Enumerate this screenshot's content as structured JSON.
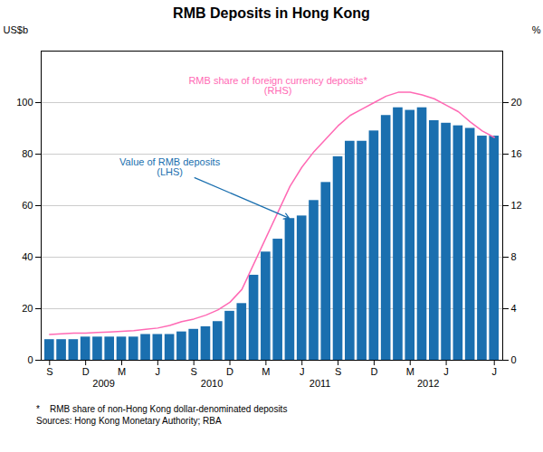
{
  "chart_data": {
    "type": "bar",
    "title": "RMB Deposits in Hong Kong",
    "ylabel": "US$b",
    "y2label": "%",
    "categories": [
      "S",
      null,
      null,
      "D",
      null,
      null,
      "M",
      null,
      null,
      "J",
      null,
      null,
      "S",
      null,
      null,
      "D",
      null,
      null,
      "M",
      null,
      null,
      "J",
      null,
      null,
      "S",
      null,
      null,
      "D",
      null,
      null,
      "M",
      null,
      null,
      "J",
      null,
      null,
      null,
      "J"
    ],
    "series": [
      {
        "type": "bar",
        "color": "#1a6faf",
        "values": [
          8,
          8,
          8,
          9,
          9,
          9,
          9,
          9,
          10,
          10,
          10,
          11,
          12,
          13,
          15,
          19,
          22,
          33,
          42,
          47,
          55,
          56,
          62,
          69,
          79,
          85,
          85,
          89,
          95,
          98,
          97,
          98,
          93,
          92,
          91,
          90,
          87,
          87
        ]
      },
      {
        "type": "line",
        "axis": "y2",
        "color": "#ff69b4",
        "values": [
          2.0,
          2.05,
          2.1,
          2.1,
          2.15,
          2.2,
          2.25,
          2.3,
          2.4,
          2.5,
          2.7,
          3.0,
          3.2,
          3.5,
          3.9,
          4.5,
          5.5,
          7.5,
          9.5,
          11.5,
          13.5,
          15.0,
          16.2,
          17.2,
          18.2,
          19.0,
          19.5,
          20.0,
          20.5,
          20.8,
          20.8,
          20.6,
          20.3,
          19.8,
          19.3,
          18.5,
          17.8,
          17.3
        ]
      }
    ],
    "ylim": [
      0,
      120
    ],
    "yticks": [
      0,
      20,
      40,
      60,
      80,
      100
    ],
    "y2lim": [
      0,
      24
    ],
    "y2ticks": [
      0,
      4,
      8,
      12,
      16,
      20
    ],
    "grid": true,
    "year_labels": [
      {
        "text": "2009",
        "x": 4.5
      },
      {
        "text": "2010",
        "x": 13.5
      },
      {
        "text": "2011",
        "x": 22.5
      },
      {
        "text": "2012",
        "x": 31.5
      }
    ],
    "annotations": [
      {
        "text": "Value of RMB deposits\n(LHS)",
        "x": 10,
        "y": 75,
        "arrow_to": [
          20,
          55
        ],
        "color": "#1a6faf"
      },
      {
        "text": "RMB share of foreign currency deposits*\n(RHS)",
        "x": 19,
        "y": 110,
        "color": "#ff69b4"
      }
    ],
    "footnotes": [
      "*    RMB share of non-Hong Kong dollar-denominated deposits",
      "Sources: Hong Kong Monetary Authority; RBA"
    ]
  }
}
